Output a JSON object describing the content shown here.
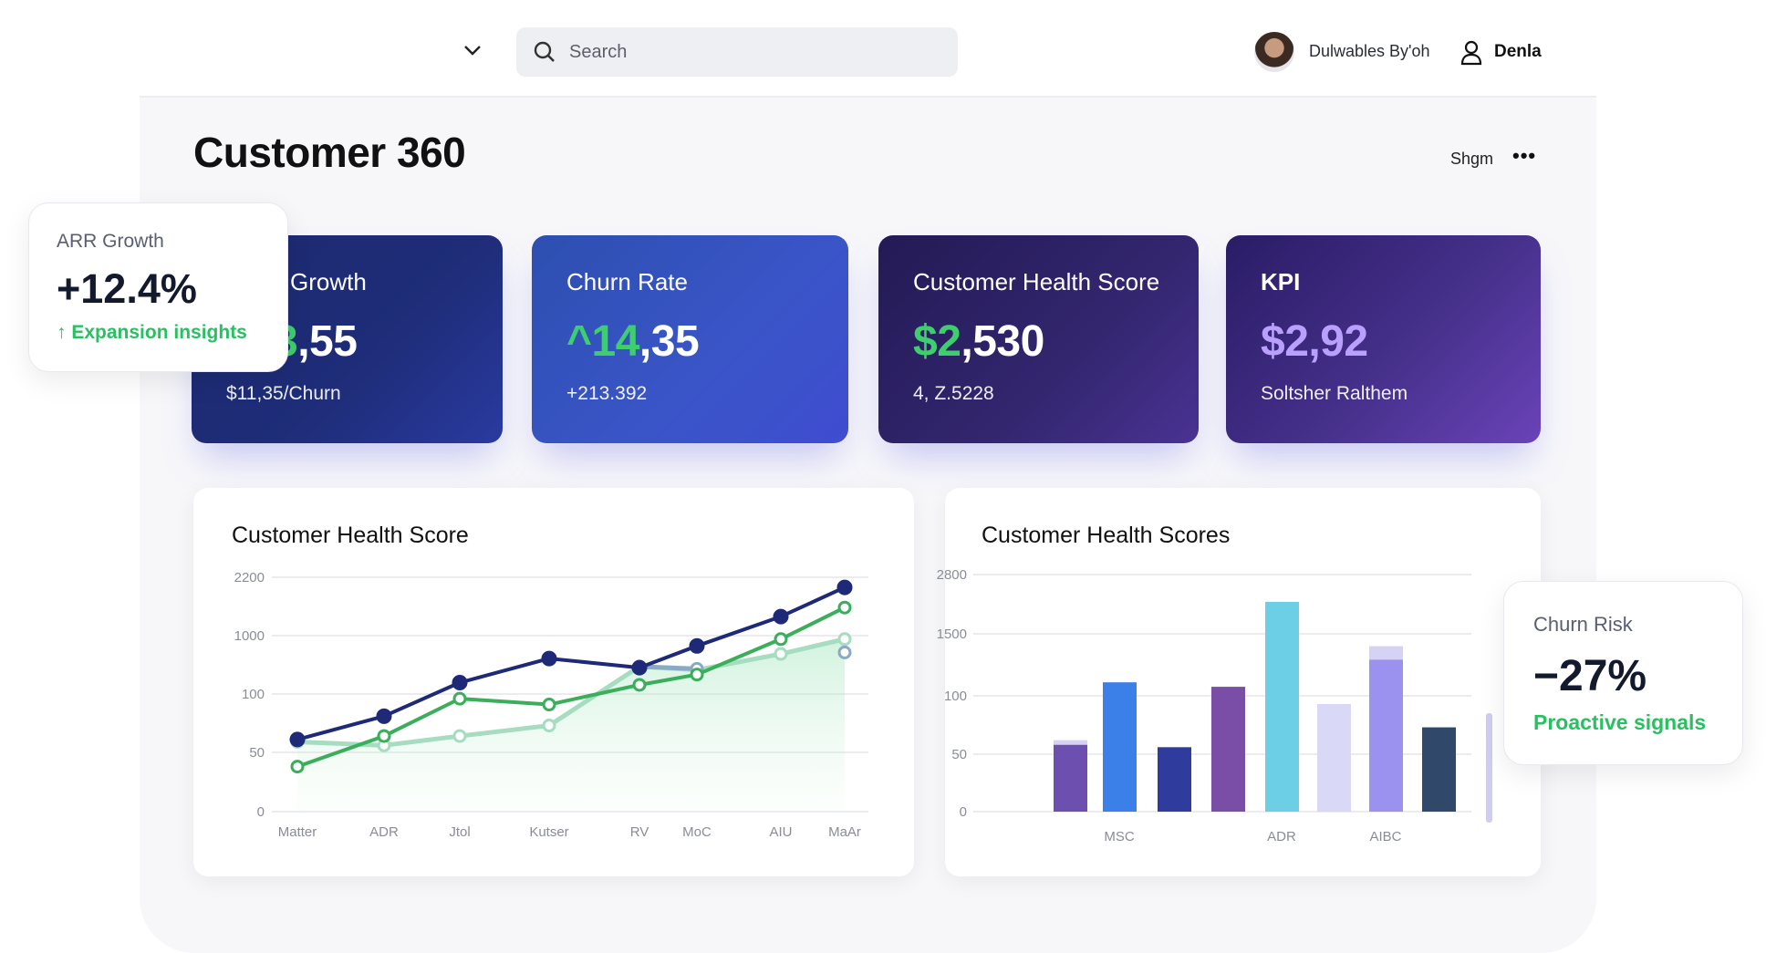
{
  "header": {
    "search_placeholder": "Search",
    "user_name": "Dulwables By'oh",
    "user2": "Denla"
  },
  "page": {
    "title": "Customer 360",
    "action": "Shgm",
    "more": "•••"
  },
  "cards": [
    {
      "label": "Growth",
      "value_accent": "3",
      "value_rest": ",55",
      "sub": "$11,35/Churn"
    },
    {
      "label": "Churn Rate",
      "value_accent": "^14",
      "value_rest": ",35",
      "sub": "+213.392"
    },
    {
      "label": "Customer Health Score",
      "value_accent": "$2",
      "value_rest": ",530",
      "sub": "4, Z.5228"
    },
    {
      "label": "KPI",
      "value_accent": "$2,92",
      "value_rest": "",
      "sub": "Soltsher Ralthem"
    }
  ],
  "arr_float": {
    "label": "ARR Growth",
    "value": "+12.4%",
    "insight": "↑ Expansion insights"
  },
  "churn_float": {
    "label": "Churn Risk",
    "value": "−27%",
    "insight": "Proactive signals"
  },
  "chart_data": [
    {
      "type": "line",
      "title": "Customer Health Score",
      "categories": [
        "Matter",
        "ADR",
        "Jtol",
        "Kutser",
        "RV",
        "MoC",
        "AIU",
        "MaAr"
      ],
      "yticks": [
        0,
        50,
        100,
        1000,
        2200
      ],
      "series": [
        {
          "name": "navy",
          "color": "#1e2a78",
          "values": [
            61,
            81,
            276,
            647,
            506,
            841,
            1392,
            1992
          ]
        },
        {
          "name": "green",
          "color": "#3aae5a",
          "values": [
            38,
            64,
            96,
            91,
            241,
            400,
            947,
            1577
          ]
        },
        {
          "name": "mint",
          "color": "#a6dcc0",
          "values": [
            59,
            56,
            64,
            73,
            524,
            471,
            718,
            947
          ]
        },
        {
          "name": "slate",
          "color": "#8aa9c4",
          "values": [
            null,
            null,
            null,
            null,
            524,
            488,
            null,
            741
          ]
        }
      ]
    },
    {
      "type": "bar",
      "title": "Customer Health Scores",
      "categories": [
        "",
        "MSC",
        "",
        "",
        "ADR",
        "",
        "AIBC",
        ""
      ],
      "yticks": [
        0,
        50,
        100,
        1500,
        2800
      ],
      "values": [
        58,
        405,
        56,
        304,
        2200,
        93,
        915,
        73
      ],
      "caps": [
        62,
        null,
        null,
        null,
        null,
        null,
        1220,
        null
      ],
      "colors": [
        "#6d4fb0",
        "#3b7fe8",
        "#2f3c9e",
        "#7a4ea6",
        "#6ccfe6",
        "#d9d9f7",
        "#9a92ee",
        "#30486a"
      ]
    }
  ]
}
